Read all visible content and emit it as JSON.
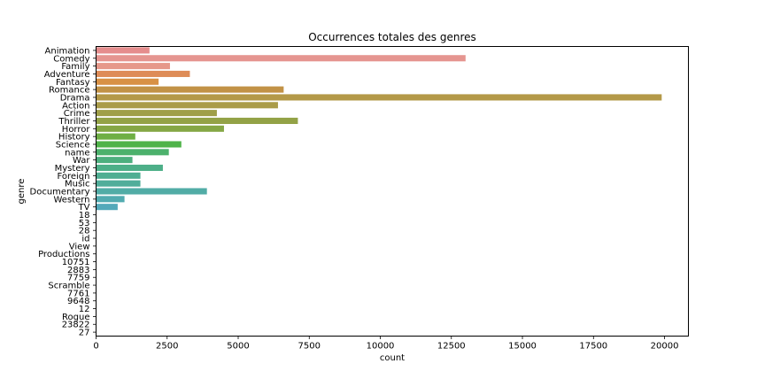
{
  "chart_data": {
    "type": "bar",
    "orientation": "horizontal",
    "title": "Occurrences totales des genres",
    "xlabel": "count",
    "ylabel": "genre",
    "xlim": [
      0,
      20840
    ],
    "xticks": [
      0,
      2500,
      5000,
      7500,
      10000,
      12500,
      15000,
      17500,
      20000
    ],
    "grid": false,
    "categories": [
      "Animation",
      "Comedy",
      "Family",
      "Adventure",
      "Fantasy",
      "Romance",
      "Drama",
      "Action",
      "Crime",
      "Thriller",
      "Horror",
      "History",
      "Science",
      "name",
      "War",
      "Mystery",
      "Foreign",
      "Music",
      "Documentary",
      "Western",
      "TV",
      "18",
      "53",
      "28",
      "id",
      "View",
      "Productions",
      "10751",
      "2883",
      "7759",
      "Scramble",
      "7761",
      "9648",
      "12",
      "Rogue",
      "23822",
      "27"
    ],
    "values": [
      1880,
      13000,
      2600,
      3300,
      2200,
      6600,
      19900,
      6400,
      4250,
      7100,
      4500,
      1380,
      3000,
      2560,
      1280,
      2350,
      1560,
      1560,
      3900,
      1000,
      760,
      0,
      0,
      0,
      0,
      0,
      0,
      0,
      0,
      0,
      0,
      0,
      0,
      0,
      0,
      0,
      0
    ],
    "colors": [
      "#e58d8d",
      "#e59590",
      "#e6988a",
      "#de8c57",
      "#d89145",
      "#c29246",
      "#b49948",
      "#aa9c49",
      "#9f9f48",
      "#93a246",
      "#85a745",
      "#6faf45",
      "#4fb349",
      "#4cb16c",
      "#4daf7e",
      "#4daf88",
      "#4fae92",
      "#50ad9a",
      "#51aca6",
      "#52abb0",
      "#53a9ba",
      "#55a7c5",
      "#5aa3d1",
      "#63a0dd",
      "#7a9ce6",
      "#939aea",
      "#a393ec",
      "#b38eec",
      "#c18aec",
      "#ce86eb",
      "#db81e8",
      "#e57de2",
      "#e684d5",
      "#e78ac8",
      "#e68dbd",
      "#e68fb1",
      "#e690a6"
    ]
  }
}
